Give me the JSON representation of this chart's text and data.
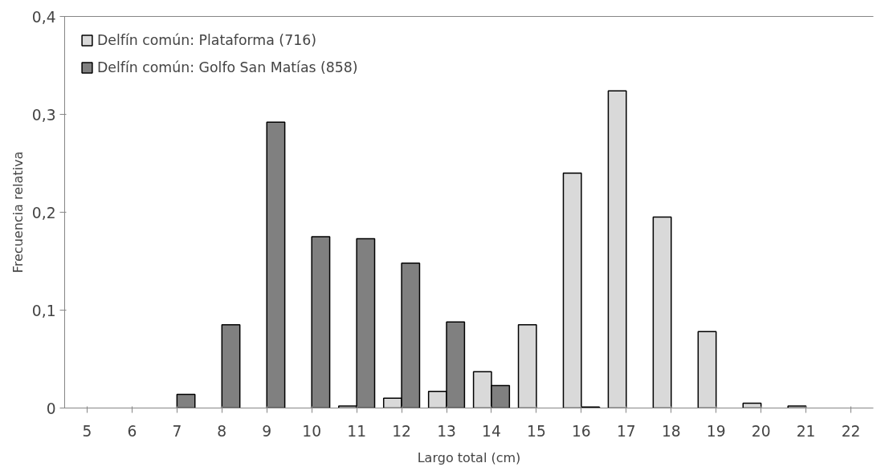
{
  "chart_data": {
    "type": "bar",
    "xlabel": "Largo total (cm)",
    "ylabel": "Frecuencia relativa",
    "categories": [
      "5",
      "6",
      "7",
      "8",
      "9",
      "10",
      "11",
      "12",
      "13",
      "14",
      "15",
      "16",
      "17",
      "18",
      "19",
      "20",
      "21",
      "22"
    ],
    "series": [
      {
        "name": "Delfín común: Plataforma (716)",
        "color": "#d9d9d9",
        "values": [
          null,
          null,
          null,
          null,
          null,
          null,
          0.002,
          0.01,
          0.017,
          0.037,
          0.085,
          0.24,
          0.324,
          0.195,
          0.078,
          0.005,
          0.002,
          null
        ]
      },
      {
        "name": "Delfín común: Golfo San Matías (858)",
        "color": "#808080",
        "values": [
          null,
          null,
          0.014,
          0.085,
          0.292,
          0.175,
          0.173,
          0.148,
          0.088,
          0.023,
          null,
          0.001,
          null,
          null,
          null,
          null,
          null,
          null
        ]
      }
    ],
    "ylim": [
      0,
      0.4
    ],
    "yticks": [
      {
        "value": 0,
        "label": "0"
      },
      {
        "value": 0.1,
        "label": "0,1"
      },
      {
        "value": 0.2,
        "label": "0,2"
      },
      {
        "value": 0.3,
        "label": "0,3"
      },
      {
        "value": 0.4,
        "label": "0,4"
      }
    ],
    "grid": false,
    "legend": "top left"
  }
}
